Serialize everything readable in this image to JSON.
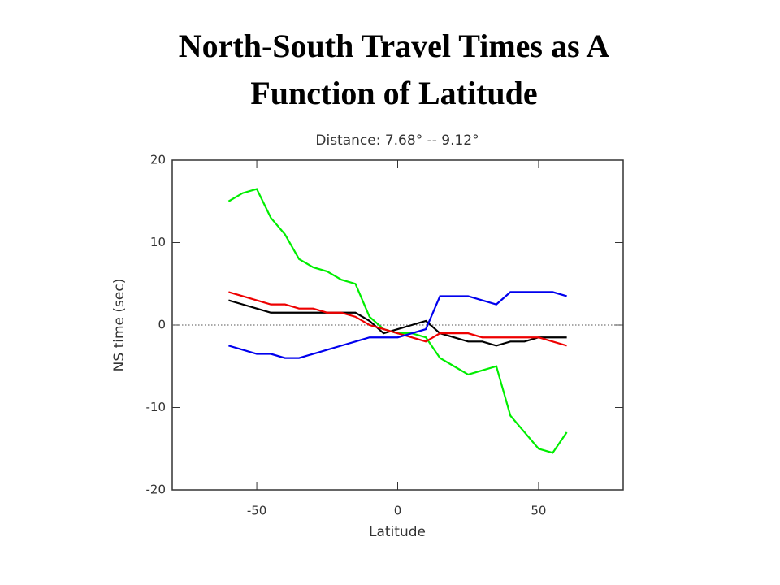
{
  "slide_title": [
    "North-South Travel Times as A",
    "Function of Latitude"
  ],
  "chart_data": {
    "type": "line",
    "title": "Distance: 7.68° -- 9.12°",
    "x_label": "Latitude",
    "y_label": "NS time (sec)",
    "xlim": [
      -80,
      80
    ],
    "xticks": [
      -50,
      0,
      50
    ],
    "ylim": [
      -20,
      20
    ],
    "yticks": [
      -20,
      -10,
      0,
      10,
      20
    ],
    "reference_line": 0,
    "x": [
      -60,
      -55,
      -50,
      -45,
      -40,
      -35,
      -30,
      -25,
      -20,
      -15,
      -10,
      -5,
      0,
      5,
      10,
      15,
      20,
      25,
      30,
      35,
      40,
      45,
      50,
      55,
      60
    ],
    "series": [
      {
        "color": "#00ee00",
        "values": [
          15,
          16,
          16.5,
          13,
          11,
          8,
          7,
          6.5,
          5.5,
          5,
          1,
          -0.5,
          -1,
          -1,
          -1.5,
          -4,
          -5,
          -6,
          -5.5,
          -5,
          -11,
          -13,
          -15,
          -15.5,
          -13
        ]
      },
      {
        "color": "#000000",
        "values": [
          3,
          2.5,
          2,
          1.5,
          1.5,
          1.5,
          1.5,
          1.5,
          1.5,
          1.5,
          0.5,
          -1,
          -0.5,
          0,
          0.5,
          -1,
          -1.5,
          -2,
          -2,
          -2.5,
          -2,
          -2,
          -1.5,
          -1.5,
          -1.5
        ]
      },
      {
        "color": "#ee0000",
        "values": [
          4,
          3.5,
          3,
          2.5,
          2.5,
          2,
          2,
          1.5,
          1.5,
          1,
          0,
          -0.5,
          -1,
          -1.5,
          -2,
          -1,
          -1,
          -1,
          -1.5,
          -1.5,
          -1.5,
          -1.5,
          -1.5,
          -2,
          -2.5
        ]
      },
      {
        "color": "#0000ee",
        "values": [
          -2.5,
          -3,
          -3.5,
          -3.5,
          -4,
          -4,
          -3.5,
          -3,
          -2.5,
          -2,
          -1.5,
          -1.5,
          -1.5,
          -1,
          -0.5,
          3.5,
          3.5,
          3.5,
          3,
          2.5,
          4,
          4,
          4,
          4,
          3.5
        ]
      }
    ]
  }
}
